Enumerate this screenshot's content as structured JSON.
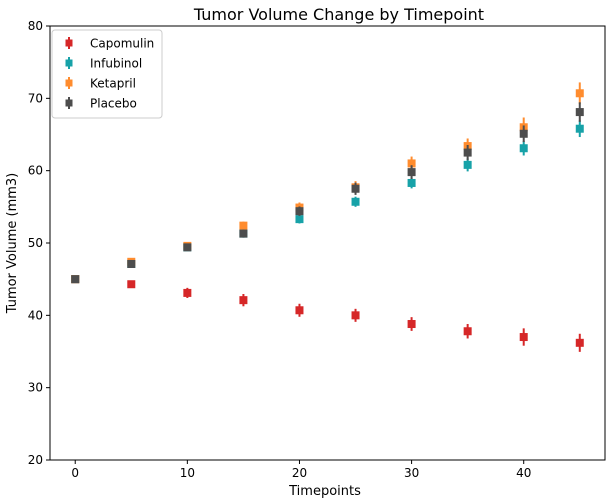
{
  "chart_data": {
    "type": "scatter",
    "title": "Tumor Volume Change by Timepoint",
    "xlabel": "Timepoints",
    "ylabel": "Tumor Volume (mm3)",
    "xlim": [
      -2.25,
      47.25
    ],
    "ylim": [
      20,
      80
    ],
    "xticks": [
      0,
      10,
      20,
      30,
      40
    ],
    "yticks": [
      20,
      30,
      40,
      50,
      60,
      70,
      80
    ],
    "grid": false,
    "legend_position": "upper-left",
    "marker": "square",
    "error_bars": true,
    "x": [
      0,
      5,
      10,
      15,
      20,
      25,
      30,
      35,
      40,
      45
    ],
    "series": [
      {
        "name": "Capomulin",
        "color": "#d62728",
        "values": [
          45.0,
          44.3,
          43.1,
          42.1,
          40.7,
          40.0,
          38.8,
          37.8,
          37.0,
          36.2
        ],
        "errors": [
          0.0,
          0.45,
          0.7,
          0.85,
          0.9,
          0.9,
          0.95,
          1.0,
          1.2,
          1.25
        ]
      },
      {
        "name": "Infubinol",
        "color": "#17a2a8",
        "values": [
          45.0,
          47.1,
          49.4,
          51.3,
          53.3,
          55.7,
          58.3,
          60.8,
          63.1,
          65.8
        ],
        "errors": [
          0.0,
          0.25,
          0.4,
          0.55,
          0.6,
          0.7,
          0.75,
          0.9,
          1.0,
          1.15
        ]
      },
      {
        "name": "Ketapril",
        "color": "#ff8c2e",
        "values": [
          45.0,
          47.4,
          49.6,
          52.4,
          54.9,
          57.7,
          61.0,
          63.4,
          66.0,
          70.7
        ],
        "errors": [
          0.0,
          0.25,
          0.4,
          0.55,
          0.7,
          0.85,
          0.95,
          1.05,
          1.35,
          1.5
        ]
      },
      {
        "name": "Placebo",
        "color": "#4d4d4d",
        "values": [
          45.0,
          47.1,
          49.4,
          51.3,
          54.4,
          57.5,
          59.8,
          62.5,
          65.1,
          68.1
        ],
        "errors": [
          0.0,
          0.25,
          0.4,
          0.55,
          0.65,
          0.85,
          0.95,
          1.05,
          1.15,
          1.35
        ]
      }
    ]
  }
}
